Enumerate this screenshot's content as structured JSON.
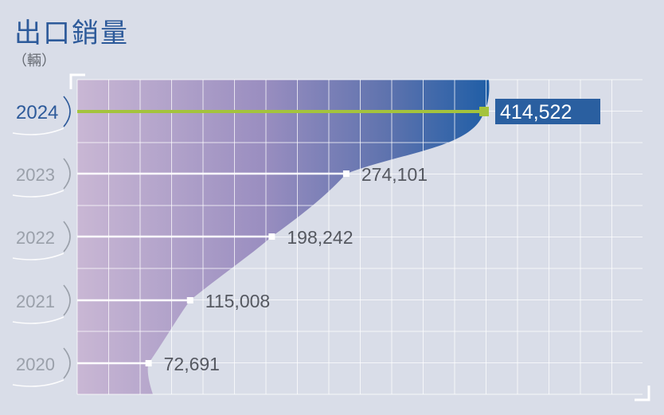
{
  "header": {
    "title": "出口銷量",
    "unit": "（輛）"
  },
  "colors": {
    "background": "#d9dde8",
    "accent_blue": "#2d5a9a",
    "highlight_green": "#a4c33d",
    "label_box": "#2a5fa0",
    "year_inactive": "#9aa0aa",
    "value_text": "#555860"
  },
  "chart_data": {
    "type": "area",
    "title": "出口銷量",
    "ylabel": "（輛）",
    "categories": [
      "2020",
      "2021",
      "2022",
      "2023",
      "2024"
    ],
    "values": [
      72691,
      115008,
      198242,
      274101,
      414522
    ],
    "value_labels": [
      "72,691",
      "115,008",
      "198,242",
      "274,101",
      "414,522"
    ],
    "highlight": "2024",
    "grid": true,
    "orientation": "horizontal"
  }
}
